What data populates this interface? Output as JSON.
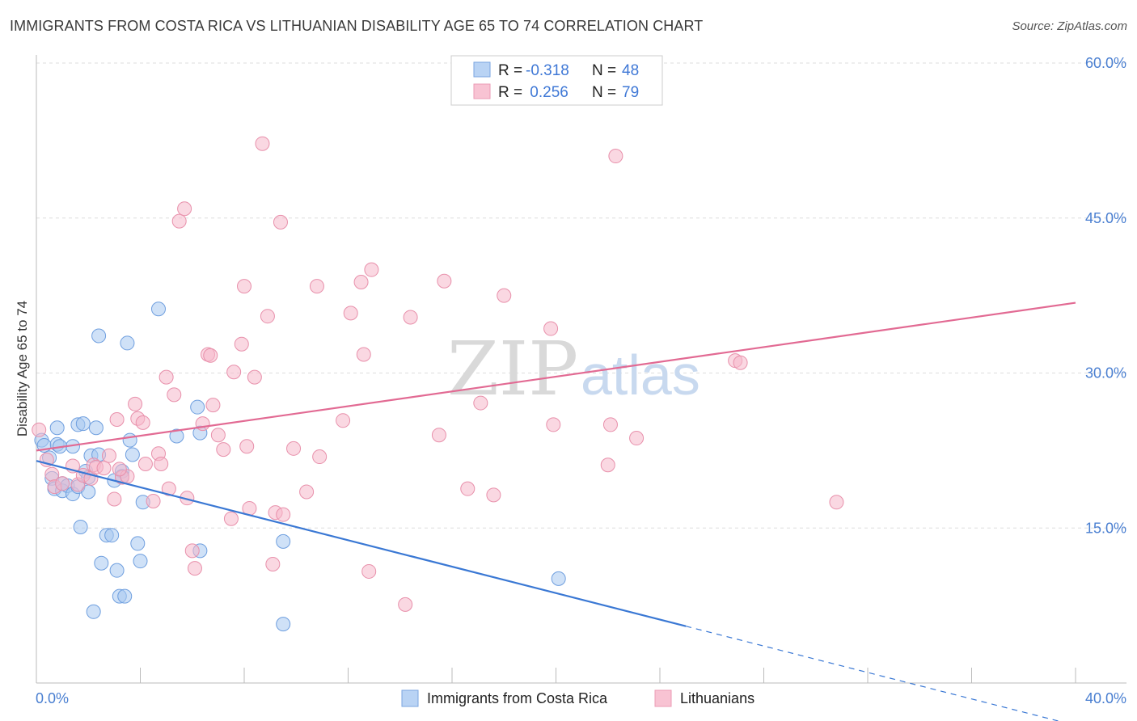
{
  "header": {
    "title": "IMMIGRANTS FROM COSTA RICA VS LITHUANIAN DISABILITY AGE 65 TO 74 CORRELATION CHART",
    "source": "Source: ZipAtlas.com"
  },
  "watermark": {
    "zip": "ZIP",
    "atlas": "atlas"
  },
  "chart_data": {
    "type": "scatter",
    "title": "IMMIGRANTS FROM COSTA RICA VS LITHUANIAN DISABILITY AGE 65 TO 74 CORRELATION CHART",
    "xlabel": "",
    "ylabel": "Disability Age 65 to 74",
    "xlim": [
      0,
      40
    ],
    "ylim": [
      0,
      60
    ],
    "x_tick_labels": {
      "left": "0.0%",
      "right": "40.0%"
    },
    "y_ticks": [
      {
        "value": 15,
        "label": "15.0%"
      },
      {
        "value": 30,
        "label": "30.0%"
      },
      {
        "value": 45,
        "label": "45.0%"
      },
      {
        "value": 60,
        "label": "60.0%"
      }
    ],
    "grid": true,
    "legend_placement": "top-center",
    "colors": {
      "blue_fill": "#a8c8f0",
      "blue_stroke": "#6f9fdf",
      "blue_line": "#3a78d4",
      "pink_fill": "#f6b8cb",
      "pink_stroke": "#e890ab",
      "pink_line": "#e26a93",
      "grid": "#dddddd",
      "tick_label": "#4a7fd1"
    },
    "legend": [
      {
        "r_label": "R =",
        "r_value": "-0.318",
        "n_label": "N =",
        "n_value": "48"
      },
      {
        "r_label": "R =",
        "r_value": " 0.256",
        "n_label": "N =",
        "n_value": "79"
      }
    ],
    "series": [
      {
        "name": "Immigrants from Costa Rica",
        "color": "blue",
        "trend": {
          "x0": 0,
          "y0": 21.5,
          "x1": 25,
          "y1": 5.5,
          "dash_to_x": 40
        },
        "points": [
          [
            0.2,
            23.5
          ],
          [
            0.3,
            23.0
          ],
          [
            0.5,
            21.8
          ],
          [
            0.6,
            19.8
          ],
          [
            0.7,
            18.8
          ],
          [
            0.8,
            24.7
          ],
          [
            0.8,
            23.1
          ],
          [
            1.0,
            19.3
          ],
          [
            1.0,
            18.6
          ],
          [
            1.2,
            19.1
          ],
          [
            1.4,
            22.9
          ],
          [
            1.4,
            18.3
          ],
          [
            1.6,
            25.0
          ],
          [
            1.6,
            19.0
          ],
          [
            1.7,
            15.1
          ],
          [
            1.8,
            25.1
          ],
          [
            1.9,
            20.5
          ],
          [
            2.0,
            19.9
          ],
          [
            2.0,
            18.5
          ],
          [
            2.1,
            22.0
          ],
          [
            2.3,
            24.7
          ],
          [
            2.4,
            22.1
          ],
          [
            2.4,
            33.6
          ],
          [
            2.5,
            11.6
          ],
          [
            2.7,
            14.3
          ],
          [
            2.9,
            14.3
          ],
          [
            3.1,
            10.9
          ],
          [
            3.2,
            8.4
          ],
          [
            3.3,
            20.5
          ],
          [
            3.3,
            20.0
          ],
          [
            3.4,
            8.4
          ],
          [
            3.5,
            32.9
          ],
          [
            3.6,
            23.5
          ],
          [
            3.7,
            22.1
          ],
          [
            3.9,
            13.5
          ],
          [
            4.0,
            11.8
          ],
          [
            4.1,
            17.5
          ],
          [
            4.7,
            36.2
          ],
          [
            5.4,
            23.9
          ],
          [
            6.2,
            26.7
          ],
          [
            6.3,
            24.2
          ],
          [
            6.3,
            12.8
          ],
          [
            9.5,
            13.7
          ],
          [
            9.5,
            5.7
          ],
          [
            20.1,
            10.1
          ],
          [
            2.2,
            6.9
          ],
          [
            0.9,
            22.9
          ],
          [
            3.0,
            19.6
          ]
        ]
      },
      {
        "name": "Lithuanians",
        "color": "pink",
        "trend": {
          "x0": 0,
          "y0": 22.5,
          "x1": 40,
          "y1": 36.8
        },
        "points": [
          [
            0.1,
            24.5
          ],
          [
            0.4,
            21.6
          ],
          [
            0.6,
            20.2
          ],
          [
            0.7,
            19.0
          ],
          [
            1.0,
            19.3
          ],
          [
            1.4,
            21.0
          ],
          [
            1.6,
            19.2
          ],
          [
            1.8,
            20.1
          ],
          [
            2.1,
            19.8
          ],
          [
            2.2,
            21.1
          ],
          [
            2.3,
            20.9
          ],
          [
            2.6,
            20.8
          ],
          [
            2.8,
            22.0
          ],
          [
            3.0,
            17.8
          ],
          [
            3.1,
            25.5
          ],
          [
            3.3,
            19.9
          ],
          [
            3.5,
            20.0
          ],
          [
            3.8,
            27.0
          ],
          [
            3.9,
            25.6
          ],
          [
            4.1,
            25.2
          ],
          [
            4.2,
            21.2
          ],
          [
            4.5,
            17.6
          ],
          [
            4.7,
            22.2
          ],
          [
            5.0,
            29.6
          ],
          [
            5.1,
            18.8
          ],
          [
            5.3,
            27.9
          ],
          [
            5.5,
            44.7
          ],
          [
            5.7,
            45.9
          ],
          [
            5.8,
            17.9
          ],
          [
            6.0,
            12.8
          ],
          [
            6.1,
            11.1
          ],
          [
            6.4,
            25.1
          ],
          [
            6.6,
            31.8
          ],
          [
            6.8,
            26.9
          ],
          [
            7.0,
            24.0
          ],
          [
            7.2,
            22.6
          ],
          [
            7.5,
            15.9
          ],
          [
            7.6,
            30.1
          ],
          [
            7.9,
            32.8
          ],
          [
            8.0,
            38.4
          ],
          [
            8.1,
            22.9
          ],
          [
            8.2,
            16.9
          ],
          [
            8.4,
            29.6
          ],
          [
            8.7,
            52.2
          ],
          [
            8.9,
            35.5
          ],
          [
            9.1,
            11.5
          ],
          [
            9.2,
            16.5
          ],
          [
            9.4,
            44.6
          ],
          [
            9.5,
            16.3
          ],
          [
            9.9,
            22.7
          ],
          [
            10.4,
            18.5
          ],
          [
            10.8,
            38.4
          ],
          [
            10.9,
            21.9
          ],
          [
            11.8,
            25.4
          ],
          [
            12.1,
            35.8
          ],
          [
            12.5,
            38.8
          ],
          [
            12.6,
            31.8
          ],
          [
            12.8,
            10.8
          ],
          [
            12.9,
            40.0
          ],
          [
            14.2,
            7.6
          ],
          [
            14.4,
            35.4
          ],
          [
            15.5,
            24.0
          ],
          [
            15.7,
            38.9
          ],
          [
            16.6,
            18.8
          ],
          [
            17.1,
            27.1
          ],
          [
            17.6,
            18.2
          ],
          [
            18.0,
            37.5
          ],
          [
            19.8,
            34.3
          ],
          [
            19.9,
            25.0
          ],
          [
            22.0,
            21.1
          ],
          [
            22.1,
            25.0
          ],
          [
            22.3,
            51.0
          ],
          [
            23.1,
            23.7
          ],
          [
            26.9,
            31.2
          ],
          [
            27.1,
            31.0
          ],
          [
            30.8,
            17.5
          ],
          [
            3.2,
            20.7
          ],
          [
            4.8,
            21.2
          ],
          [
            6.7,
            31.7
          ]
        ]
      }
    ]
  },
  "bottom_legend": [
    {
      "label": "Immigrants from Costa Rica"
    },
    {
      "label": "Lithuanians"
    }
  ]
}
